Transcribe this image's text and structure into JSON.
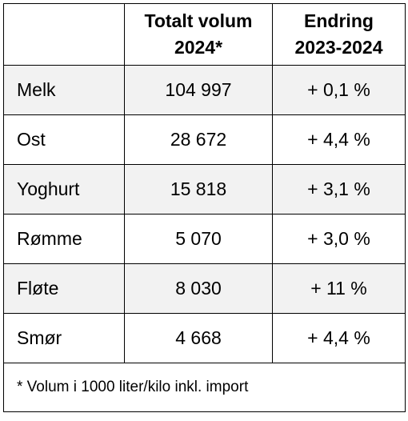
{
  "table": {
    "header": [
      {
        "lines": [
          "Totalt volum",
          "2024*"
        ]
      },
      {
        "lines": [
          "Endring",
          "2023-2024"
        ]
      }
    ],
    "rows": [
      [
        "Melk",
        "104 997",
        "+ 0,1 %"
      ],
      [
        "Ost",
        "28 672",
        "+ 4,4 %"
      ],
      [
        "Yoghurt",
        "15 818",
        "+ 3,1 %"
      ],
      [
        "Rømme",
        "5 070",
        "+ 3,0 %"
      ],
      [
        "Fløte",
        "8 030",
        "+ 11 %"
      ],
      [
        "Smør",
        "4 668",
        "+ 4,4 %"
      ]
    ],
    "footnote": "* Volum i 1000 liter/kilo inkl. import"
  }
}
